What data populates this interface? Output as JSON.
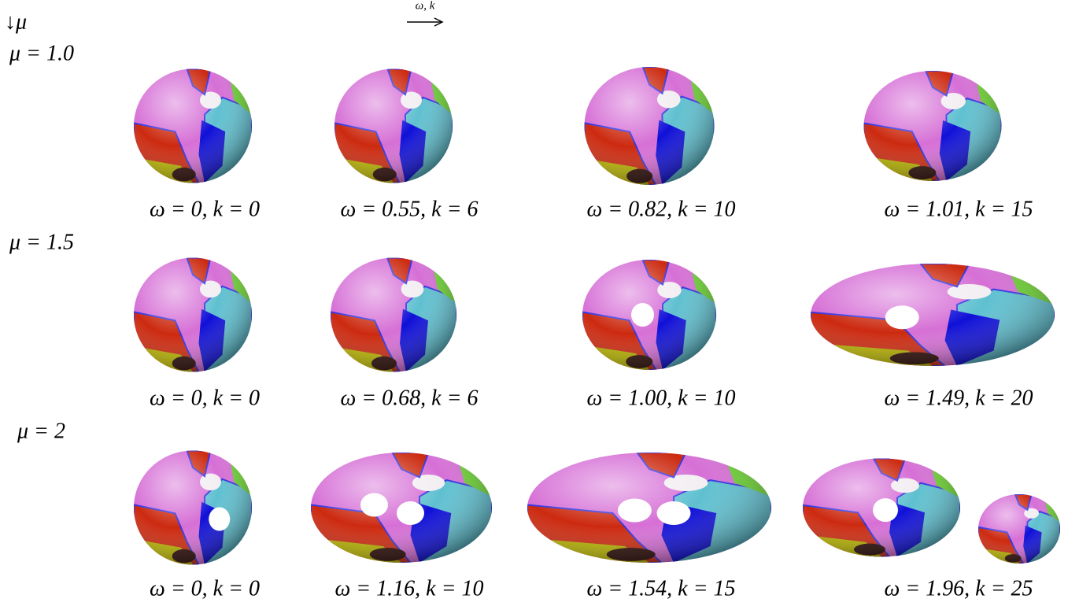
{
  "header": {
    "mu_arrow": "↓μ",
    "omega_k_arrow": "ω, k"
  },
  "rows": [
    {
      "label": "μ = 1.0",
      "panels": [
        {
          "caption": "ω = 0, k = 0"
        },
        {
          "caption": "ω = 0.55, k = 6"
        },
        {
          "caption": "ω = 0.82, k = 10"
        },
        {
          "caption": "ω = 1.01, k = 15"
        }
      ]
    },
    {
      "label": "μ = 1.5",
      "panels": [
        {
          "caption": "ω = 0, k = 0"
        },
        {
          "caption": "ω = 0.68, k = 6"
        },
        {
          "caption": "ω = 1.00, k = 10"
        },
        {
          "caption": "ω = 1.49, k = 20"
        }
      ]
    },
    {
      "label": "μ = 2",
      "panels": [
        {
          "caption": "ω = 0, k = 0"
        },
        {
          "caption": "ω = 1.16, k = 10"
        },
        {
          "caption": "ω = 1.54, k = 15"
        },
        {
          "caption": "ω = 1.96, k = 25"
        }
      ]
    }
  ]
}
